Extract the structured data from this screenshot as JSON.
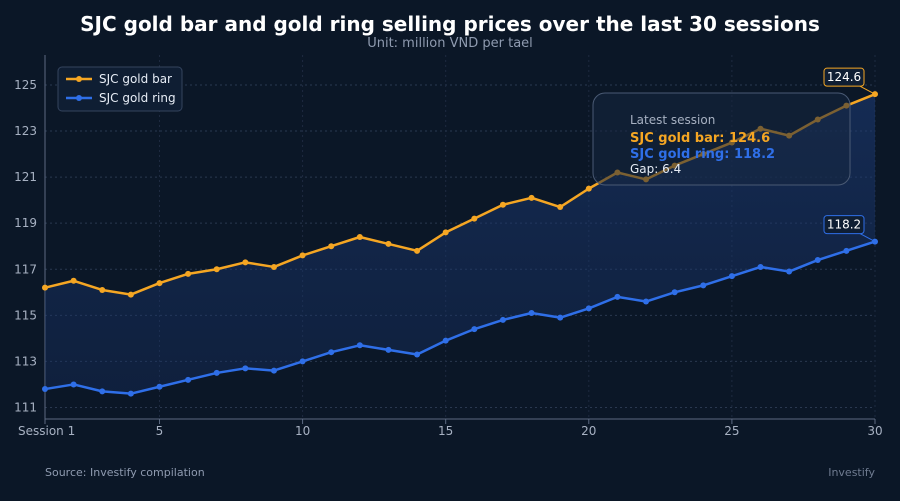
{
  "chart_data": {
    "type": "line",
    "title": "SJC gold bar and gold ring selling prices over the last 30 sessions",
    "subtitle": "Unit: million VND per tael",
    "x": [
      1,
      2,
      3,
      4,
      5,
      6,
      7,
      8,
      9,
      10,
      11,
      12,
      13,
      14,
      15,
      16,
      17,
      18,
      19,
      20,
      21,
      22,
      23,
      24,
      25,
      26,
      27,
      28,
      29,
      30
    ],
    "x_ticks": [
      1,
      5,
      10,
      15,
      20,
      25,
      30
    ],
    "x_tick_labels": [
      "Session 1",
      "5",
      "10",
      "15",
      "20",
      "25",
      "30"
    ],
    "xlim": [
      1,
      30
    ],
    "y_ticks": [
      111,
      113,
      115,
      117,
      119,
      121,
      123,
      125
    ],
    "ylim": [
      110.5,
      126.3
    ],
    "grid": true,
    "legend_position": "top-left",
    "series": [
      {
        "name": "SJC gold bar",
        "color": "#f5a623",
        "values": [
          116.2,
          116.5,
          116.1,
          115.9,
          116.4,
          116.8,
          117.0,
          117.3,
          117.1,
          117.6,
          118.0,
          118.4,
          118.1,
          117.8,
          118.6,
          119.2,
          119.8,
          120.1,
          119.7,
          120.5,
          121.2,
          120.9,
          121.5,
          122.0,
          122.5,
          123.1,
          122.8,
          123.5,
          124.1,
          124.6
        ]
      },
      {
        "name": "SJC gold ring",
        "color": "#2f6fe8",
        "values": [
          111.8,
          112.0,
          111.7,
          111.6,
          111.9,
          112.2,
          112.5,
          112.7,
          112.6,
          113.0,
          113.4,
          113.7,
          113.5,
          113.3,
          113.9,
          114.4,
          114.8,
          115.1,
          114.9,
          115.3,
          115.8,
          115.6,
          116.0,
          116.3,
          116.7,
          117.1,
          116.9,
          117.4,
          117.8,
          118.2
        ]
      }
    ],
    "end_labels": [
      "124.6",
      "118.2"
    ],
    "info_box": {
      "heading": "Latest session",
      "bar_line": "SJC gold bar: 124.6",
      "ring_line": "SJC gold ring: 118.2",
      "gap_line": "Gap: 6.4"
    }
  },
  "footer": {
    "source": "Source: Investify compilation",
    "brand": "Investify"
  }
}
